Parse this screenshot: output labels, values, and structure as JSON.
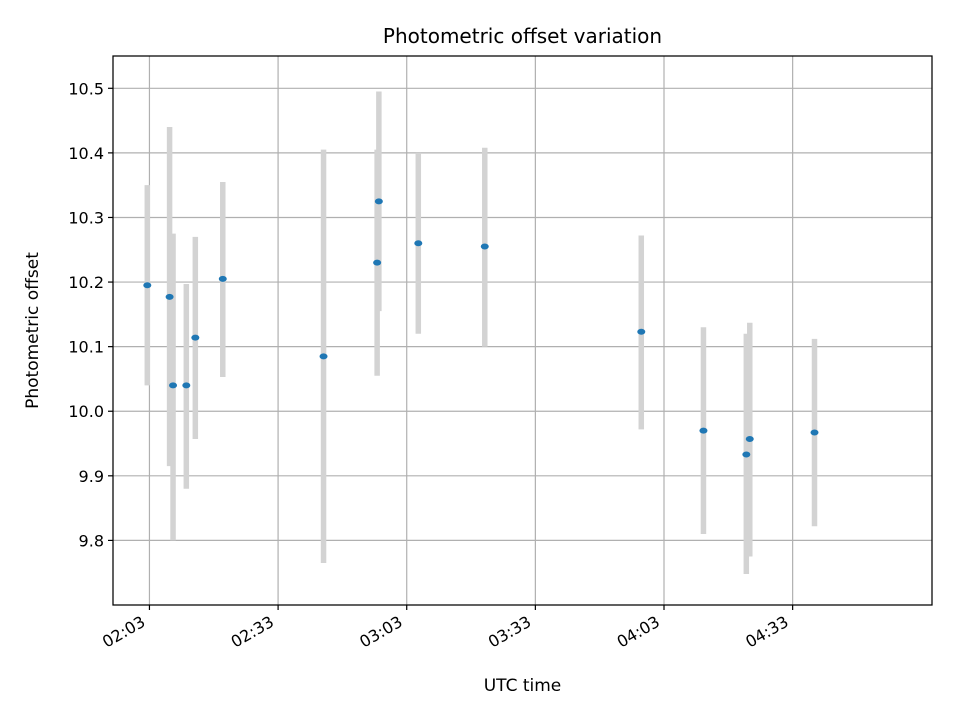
{
  "chart_data": {
    "type": "scatter",
    "title": "Photometric offset variation",
    "xlabel": "UTC time",
    "ylabel": "Photometric offset",
    "x_ticks": [
      "02:03",
      "02:33",
      "03:03",
      "03:33",
      "04:03",
      "04:33"
    ],
    "x_tick_values": [
      "02:03",
      "02:33",
      "03:03",
      "03:33",
      "04:03",
      "04:33"
    ],
    "y_ticks": [
      "9.8",
      "9.9",
      "10.0",
      "10.1",
      "10.2",
      "10.3",
      "10.4",
      "10.5"
    ],
    "xlim": [
      "01:54.5",
      "05:05.5"
    ],
    "ylim": [
      9.7,
      10.55
    ],
    "grid": true,
    "error_bar_color": "#d3d3d3",
    "point_color": "#1f77b4",
    "points": [
      {
        "x": "02:02.5",
        "y": 10.195,
        "ylo": 10.04,
        "yhi": 10.35
      },
      {
        "x": "02:07.7",
        "y": 10.177,
        "ylo": 9.915,
        "yhi": 10.44
      },
      {
        "x": "02:08.5",
        "y": 10.04,
        "ylo": 9.8,
        "yhi": 10.275
      },
      {
        "x": "02:11.6",
        "y": 10.04,
        "ylo": 9.88,
        "yhi": 10.197
      },
      {
        "x": "02:13.7",
        "y": 10.114,
        "ylo": 9.957,
        "yhi": 10.27
      },
      {
        "x": "02:20.1",
        "y": 10.205,
        "ylo": 10.053,
        "yhi": 10.355
      },
      {
        "x": "02:43.6",
        "y": 10.085,
        "ylo": 9.765,
        "yhi": 10.405
      },
      {
        "x": "02:56.1",
        "y": 10.23,
        "ylo": 10.055,
        "yhi": 10.405
      },
      {
        "x": "02:56.5",
        "y": 10.325,
        "ylo": 10.155,
        "yhi": 10.495
      },
      {
        "x": "03:05.7",
        "y": 10.26,
        "ylo": 10.12,
        "yhi": 10.4
      },
      {
        "x": "03:21.2",
        "y": 10.255,
        "ylo": 10.1,
        "yhi": 10.408
      },
      {
        "x": "03:57.7",
        "y": 10.123,
        "ylo": 9.972,
        "yhi": 10.272
      },
      {
        "x": "04:12.2",
        "y": 9.97,
        "ylo": 9.81,
        "yhi": 10.13
      },
      {
        "x": "04:22.2",
        "y": 9.933,
        "ylo": 9.748,
        "yhi": 10.12
      },
      {
        "x": "04:23.0",
        "y": 9.957,
        "ylo": 9.775,
        "yhi": 10.137
      },
      {
        "x": "04:38.1",
        "y": 9.967,
        "ylo": 9.822,
        "yhi": 10.112
      }
    ]
  }
}
